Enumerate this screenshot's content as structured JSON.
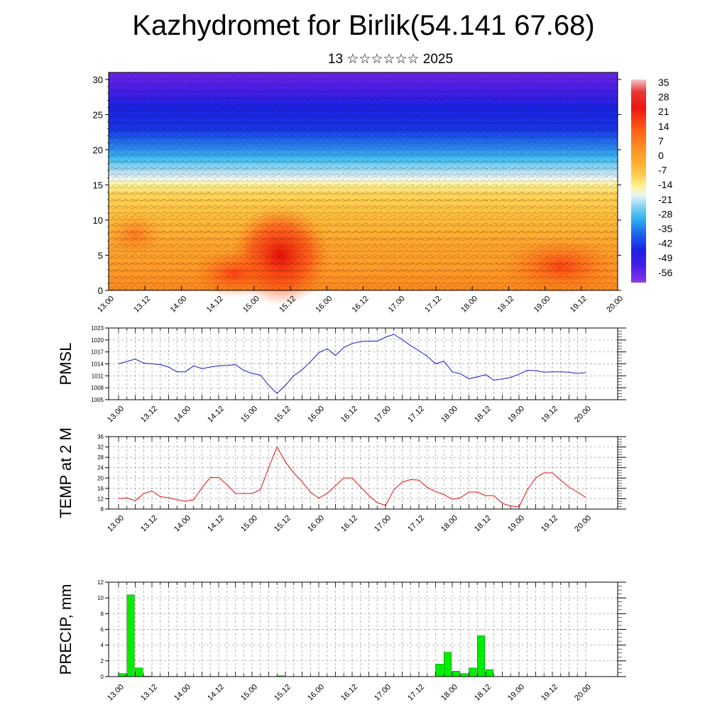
{
  "header": {
    "title": "Kazhydromet for Birlik(54.141 67.68)",
    "subtitle": "13 ☆☆☆☆☆☆ 2025"
  },
  "colors": {
    "pmsl_line": "#1a1acc",
    "temp_line": "#dd1111",
    "precip_bar": "#00ee00",
    "grid": "#999999"
  },
  "chart_data": [
    {
      "type": "heatmap",
      "id": "cross-section",
      "x_tick_labels": [
        "13.00",
        "13.12",
        "14.00",
        "14.12",
        "15.00",
        "15.12",
        "16.00",
        "16.12",
        "17.00",
        "17.12",
        "18.00",
        "18.12",
        "19.00",
        "19.12",
        "20.00"
      ],
      "y_tick_labels": [
        "0",
        "5",
        "10",
        "15",
        "20",
        "25",
        "30"
      ],
      "ylim": [
        0,
        31
      ],
      "colorbar_labels": [
        "35",
        "28",
        "21",
        "14",
        "7",
        "0",
        "-7",
        "-14",
        "-21",
        "-28",
        "-35",
        "-42",
        "-49",
        "-56"
      ],
      "colormap": [
        "#f2bfbf",
        "#e8302c",
        "#ff5a10",
        "#ff8c1e",
        "#ffb33a",
        "#ffd860",
        "#fffbb0",
        "#a8d8f0",
        "#28b4f0",
        "#2070ee",
        "#1a1ee0",
        "#5a1ee8",
        "#8a3ae6"
      ],
      "overlay": "wind barbs"
    },
    {
      "type": "line",
      "id": "pmsl",
      "ylabel": "PMSL",
      "x_tick_labels": [
        "13.00",
        "13.12",
        "14.00",
        "14.12",
        "15.00",
        "15.12",
        "16.00",
        "16.12",
        "17.00",
        "17.12",
        "18.00",
        "18.12",
        "19.00",
        "19.12",
        "20.00"
      ],
      "y_tick_labels": [
        "1005",
        "1008",
        "1011",
        "1014",
        "1017",
        "1020",
        "1023"
      ],
      "ylim": [
        1005,
        1023
      ],
      "x": [
        0,
        1,
        2,
        3,
        4,
        5,
        6,
        7,
        8,
        9,
        10,
        11,
        12,
        13,
        14,
        15,
        16,
        17,
        18,
        19,
        20,
        21,
        22,
        23,
        24,
        25,
        26,
        27,
        28,
        29,
        30,
        31,
        32,
        33,
        34,
        35,
        36,
        37,
        38,
        39,
        40,
        41,
        42,
        43,
        44,
        45,
        46,
        47,
        48,
        49,
        50,
        51,
        52,
        53,
        54,
        55,
        56
      ],
      "values": [
        1014,
        1014.6,
        1015.2,
        1014.2,
        1014,
        1013.8,
        1013.2,
        1012,
        1012,
        1013.5,
        1012.8,
        1013.2,
        1013.5,
        1013.6,
        1013.8,
        1012.4,
        1011.6,
        1011.2,
        1008.6,
        1006.6,
        1008.6,
        1011,
        1012.5,
        1014.5,
        1016.8,
        1017.8,
        1016.1,
        1018.1,
        1019.1,
        1019.6,
        1019.7,
        1019.7,
        1020.7,
        1021.4,
        1020.1,
        1018.6,
        1017.3,
        1015.9,
        1014,
        1014.7,
        1012,
        1011.5,
        1010.3,
        1010.7,
        1011.3,
        1009.9,
        1010.2,
        1010.6,
        1011.4,
        1012.4,
        1012.3,
        1011.9,
        1012,
        1012,
        1011.9,
        1011.6,
        1011.8
      ],
      "grid": true
    },
    {
      "type": "line",
      "id": "temp",
      "ylabel": "TEMP at 2 M",
      "x_tick_labels": [
        "13.00",
        "13.12",
        "14.00",
        "14.12",
        "15.00",
        "15.12",
        "16.00",
        "16.12",
        "17.00",
        "17.12",
        "18.00",
        "18.12",
        "19.00",
        "19.12",
        "20.00"
      ],
      "y_tick_labels": [
        "8",
        "12",
        "16",
        "20",
        "24",
        "28",
        "32",
        "36"
      ],
      "ylim": [
        8,
        36
      ],
      "x": [
        0,
        1,
        2,
        3,
        4,
        5,
        6,
        7,
        8,
        9,
        10,
        11,
        12,
        13,
        14,
        15,
        16,
        17,
        18,
        19,
        20,
        21,
        22,
        23,
        24,
        25,
        26,
        27,
        28,
        29,
        30,
        31,
        32,
        33,
        34,
        35,
        36,
        37,
        38,
        39,
        40,
        41,
        42,
        43,
        44,
        45,
        46,
        47,
        48,
        49,
        50,
        51,
        52,
        53,
        54,
        55,
        56
      ],
      "values": [
        12,
        12.3,
        11.2,
        13.9,
        15,
        12.8,
        12.3,
        11.6,
        11,
        11.6,
        16.2,
        20.2,
        20.2,
        17.5,
        14,
        14,
        14,
        15.4,
        24,
        32,
        26.2,
        22,
        18.6,
        14.6,
        12.2,
        14,
        17,
        20,
        20,
        16.6,
        13.2,
        10.5,
        9.4,
        15.4,
        18.4,
        19.4,
        19.2,
        16.4,
        14.8,
        13.6,
        11.8,
        12.4,
        14.6,
        14.6,
        13.2,
        13.2,
        10.2,
        9.2,
        8.8,
        15.4,
        20,
        22,
        22,
        19.2,
        16.5,
        14.6,
        12.5
      ],
      "grid": true
    },
    {
      "type": "bar",
      "id": "precip",
      "ylabel": "PRECIP, mm",
      "x_tick_labels": [
        "13.00",
        "13.12",
        "14.00",
        "14.12",
        "15.00",
        "15.12",
        "16.00",
        "16.12",
        "17.00",
        "17.12",
        "18.00",
        "18.12",
        "19.00",
        "19.12",
        "20.00"
      ],
      "y_tick_labels": [
        "0",
        "2",
        "4",
        "6",
        "8",
        "10",
        "12"
      ],
      "ylim": [
        0,
        12
      ],
      "x": [
        0,
        1,
        2,
        3,
        4,
        5,
        6,
        7,
        8,
        9,
        10,
        11,
        12,
        13,
        14,
        15,
        16,
        17,
        18,
        19,
        20,
        21,
        22,
        23,
        24,
        25,
        26,
        27,
        28,
        29,
        30,
        31,
        32,
        33,
        34,
        35,
        36,
        37,
        38,
        39,
        40,
        41,
        42,
        43,
        44,
        45,
        46,
        47,
        48,
        49,
        50,
        51,
        52,
        53,
        54,
        55
      ],
      "values": [
        0.4,
        10.4,
        1.1,
        0.05,
        0,
        0,
        0,
        0,
        0,
        0,
        0,
        0,
        0,
        0,
        0,
        0,
        0,
        0,
        0,
        0.1,
        0,
        0,
        0,
        0,
        0,
        0,
        0,
        0,
        0,
        0,
        0,
        0,
        0,
        0,
        0,
        0,
        0,
        0,
        1.6,
        3.1,
        0.7,
        0.4,
        1.1,
        5.2,
        0.9,
        0,
        0,
        0,
        0,
        0,
        0,
        0,
        0,
        0,
        0,
        0
      ],
      "grid": true
    }
  ]
}
